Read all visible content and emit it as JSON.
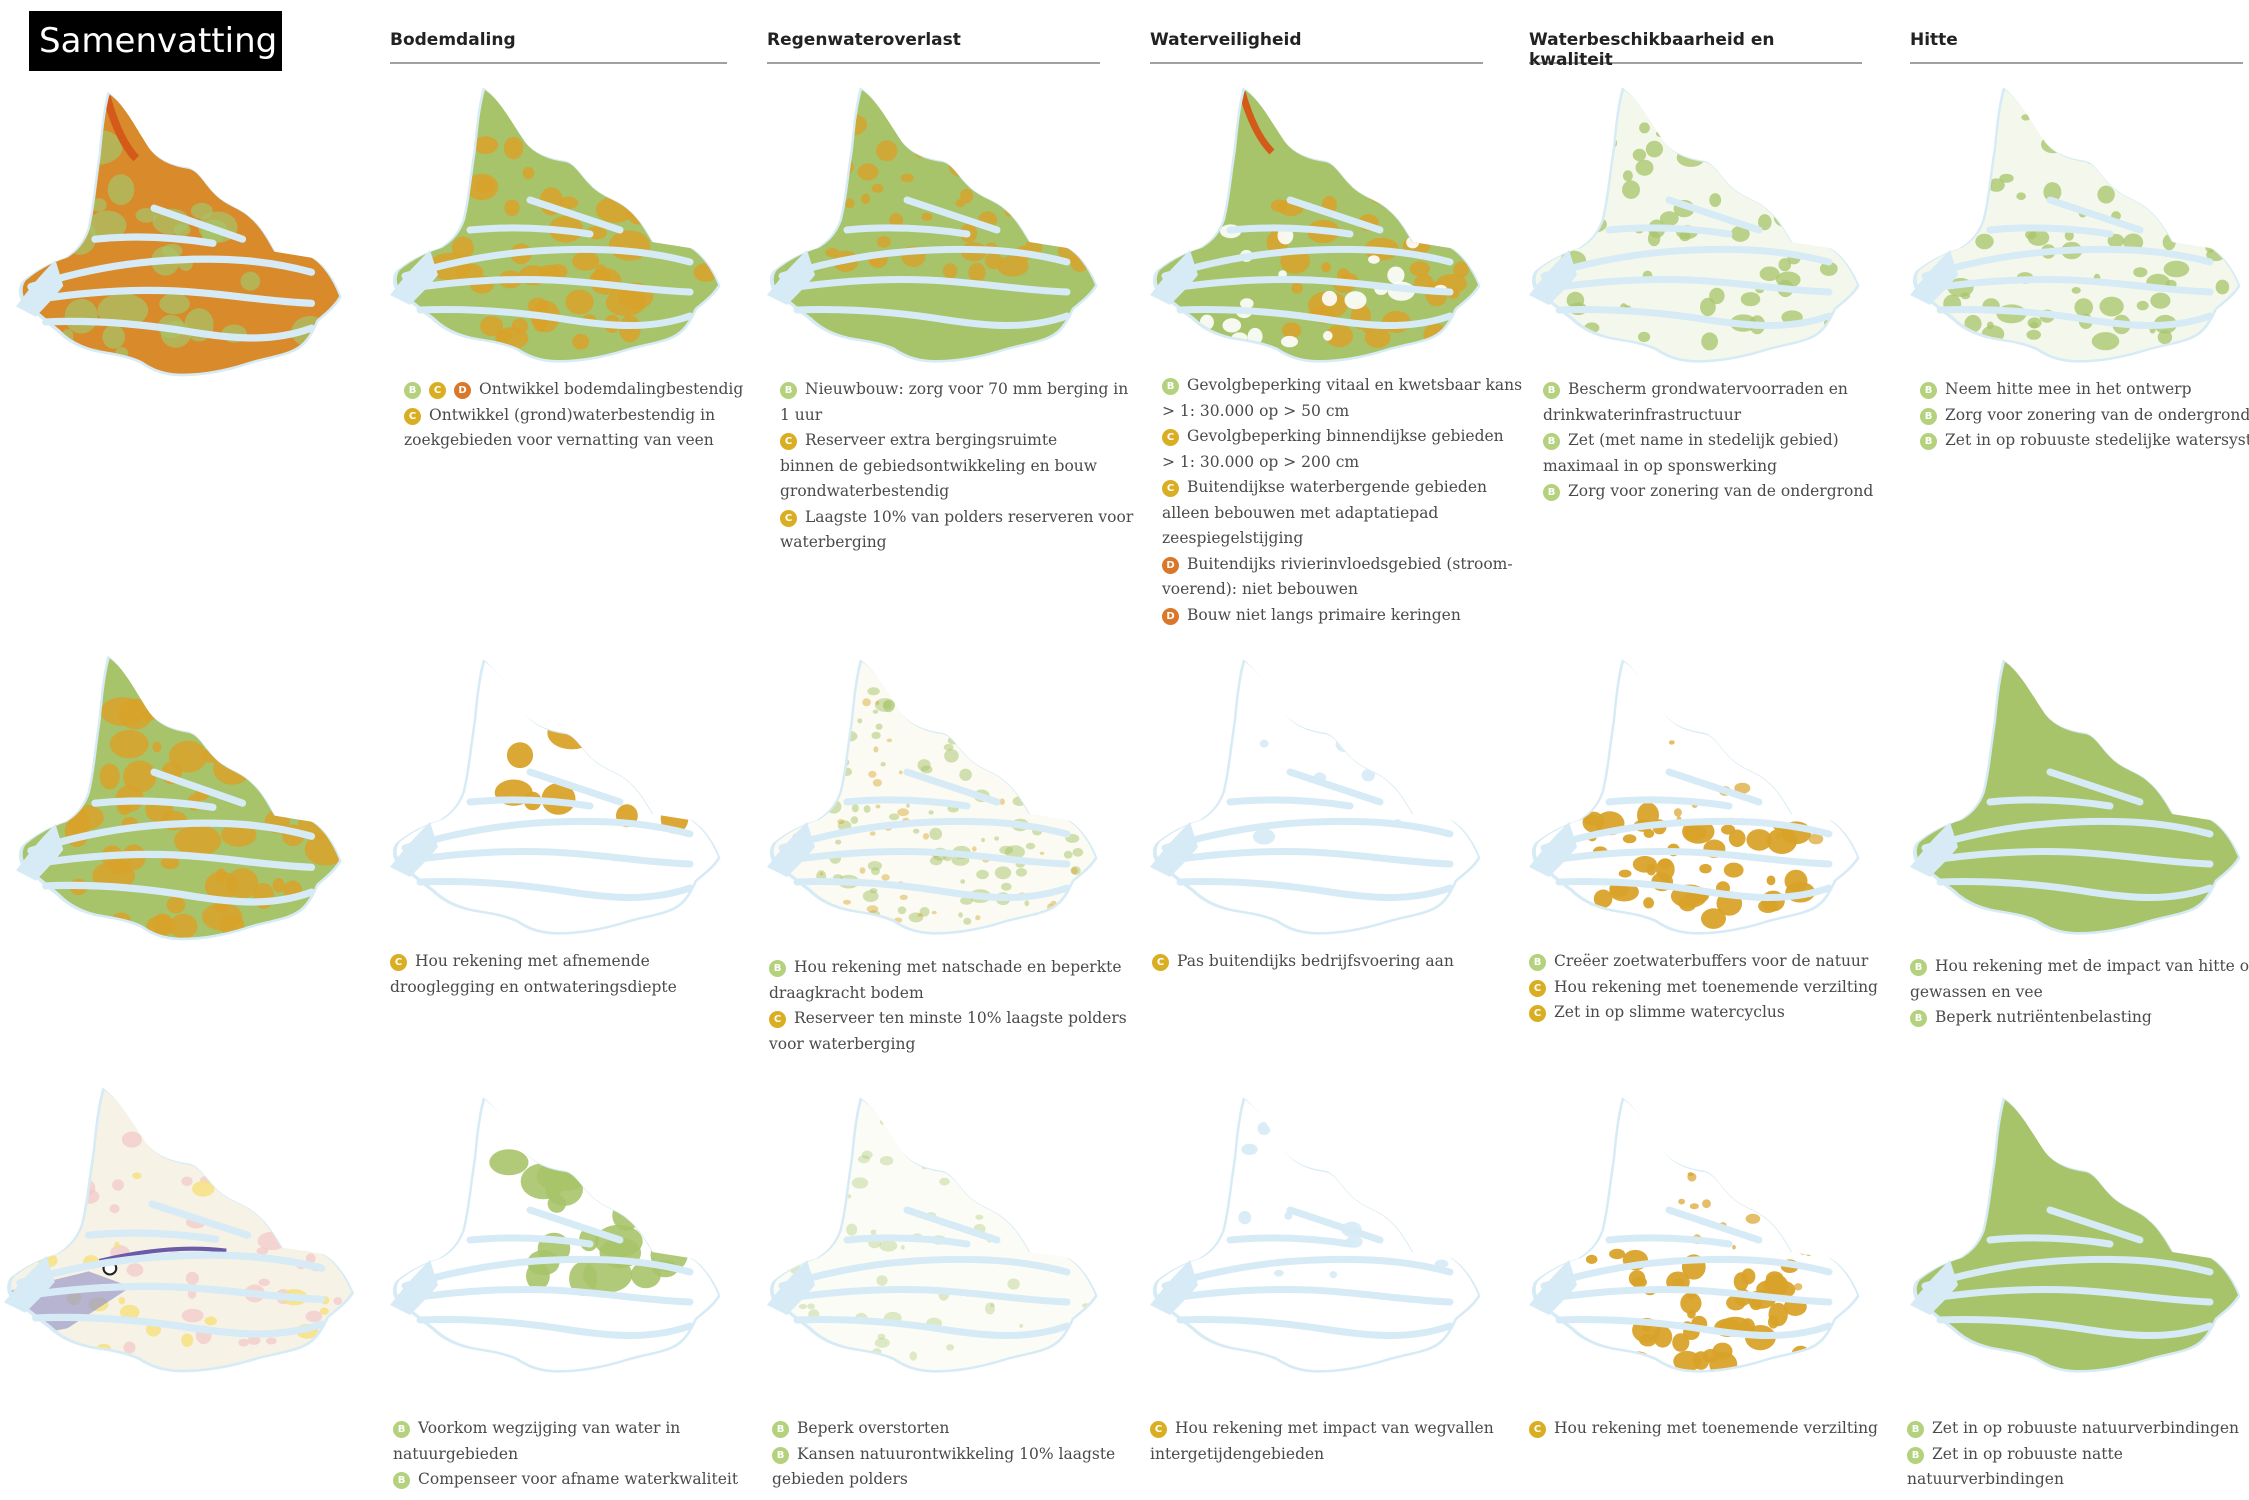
{
  "title": "Samenvatting",
  "columns": [
    "Bodemdaling",
    "Regenwateroverlast",
    "Waterveiligheid",
    "Waterbeschikbaarheid en kwaliteit",
    "Hitte"
  ],
  "colors": {
    "B": "#b4d17e",
    "C": "#d9ae22",
    "D": "#d9782a",
    "water": "#d6ebf5",
    "land_green": "#a7c46a",
    "land_orange": "#d9a22a"
  },
  "legends": {
    "r1c1": [
      {
        "badges": [
          "B",
          "C",
          "D"
        ],
        "text": "Ontwikkel bodemdalingbestendig"
      },
      {
        "badges": [
          "C"
        ],
        "text": "Ontwikkel (grond)waterbestendig in"
      },
      {
        "badges": [],
        "text": "zoekgebieden voor vernatting van veen"
      }
    ],
    "r1c2": [
      {
        "badges": [
          "B"
        ],
        "text": "Nieuwbouw: zorg voor 70 mm berging in"
      },
      {
        "badges": [],
        "text": "1 uur"
      },
      {
        "badges": [
          "C"
        ],
        "text": "Reserveer extra bergingsruimte"
      },
      {
        "badges": [],
        "text": "binnen de gebiedsontwikkeling en bouw"
      },
      {
        "badges": [],
        "text": "grondwaterbestendig"
      },
      {
        "badges": [
          "C"
        ],
        "text": "Laagste 10% van polders reserveren voor"
      },
      {
        "badges": [],
        "text": "waterberging"
      }
    ],
    "r1c3": [
      {
        "badges": [
          "B"
        ],
        "text": "Gevolgbeperking vitaal en kwetsbaar kans"
      },
      {
        "badges": [],
        "text": "> 1: 30.000 op > 50 cm"
      },
      {
        "badges": [
          "C"
        ],
        "text": "Gevolgbeperking binnendijkse gebieden"
      },
      {
        "badges": [],
        "text": "> 1: 30.000 op > 200 cm"
      },
      {
        "badges": [
          "C"
        ],
        "text": "Buitendijkse waterbergende gebieden"
      },
      {
        "badges": [],
        "text": "alleen bebouwen met adaptatiepad"
      },
      {
        "badges": [],
        "text": "zeespiegelstijging"
      },
      {
        "badges": [
          "D"
        ],
        "text": "Buitendijks rivierinvloedsgebied (stroom-"
      },
      {
        "badges": [],
        "text": "voerend): niet bebouwen"
      },
      {
        "badges": [
          "D"
        ],
        "text": "Bouw niet langs primaire keringen"
      }
    ],
    "r1c4": [
      {
        "badges": [
          "B"
        ],
        "text": "Bescherm grondwatervoorraden en"
      },
      {
        "badges": [],
        "text": "drinkwaterinfrastructuur"
      },
      {
        "badges": [
          "B"
        ],
        "text": "Zet (met name in stedelijk gebied)"
      },
      {
        "badges": [],
        "text": "maximaal in op sponswerking"
      },
      {
        "badges": [
          "B"
        ],
        "text": "Zorg voor zonering van de ondergrond"
      }
    ],
    "r1c5": [
      {
        "badges": [
          "B"
        ],
        "text": "Neem hitte mee in het ontwerp"
      },
      {
        "badges": [
          "B"
        ],
        "text": "Zorg voor zonering van de ondergrond"
      },
      {
        "badges": [
          "B"
        ],
        "text": "Zet in op robuuste stedelijke watersystemen"
      }
    ],
    "r2c1": [
      {
        "badges": [
          "C"
        ],
        "text": "Hou rekening met afnemende"
      },
      {
        "badges": [],
        "text": "drooglegging en ontwateringsdiepte"
      }
    ],
    "r2c2": [
      {
        "badges": [
          "B"
        ],
        "text": "Hou rekening met natschade en beperkte"
      },
      {
        "badges": [],
        "text": "draagkracht bodem"
      },
      {
        "badges": [
          "C"
        ],
        "text": "Reserveer ten minste 10% laagste polders"
      },
      {
        "badges": [],
        "text": "voor waterberging"
      }
    ],
    "r2c3": [
      {
        "badges": [
          "C"
        ],
        "text": "Pas buitendijks bedrijfsvoering aan"
      }
    ],
    "r2c4": [
      {
        "badges": [
          "B"
        ],
        "text": "Creëer zoetwaterbuffers voor de natuur"
      },
      {
        "badges": [
          "C"
        ],
        "text": "Hou rekening met toenemende verzilting"
      },
      {
        "badges": [
          "C"
        ],
        "text": "Zet in op slimme watercyclus"
      }
    ],
    "r2c5": [
      {
        "badges": [
          "B"
        ],
        "text": "Hou rekening met de impact van hitte op"
      },
      {
        "badges": [],
        "text": "gewassen en vee"
      },
      {
        "badges": [
          "B"
        ],
        "text": "Beperk nutriëntenbelasting"
      }
    ],
    "r3c1": [
      {
        "badges": [
          "B"
        ],
        "text": "Voorkom wegzijging van water in"
      },
      {
        "badges": [],
        "text": "natuurgebieden"
      },
      {
        "badges": [
          "B"
        ],
        "text": "Compenseer voor afname waterkwaliteit"
      }
    ],
    "r3c2": [
      {
        "badges": [
          "B"
        ],
        "text": "Beperk overstorten"
      },
      {
        "badges": [
          "B"
        ],
        "text": "Kansen natuurontwikkeling 10% laagste"
      },
      {
        "badges": [],
        "text": "gebieden polders"
      }
    ],
    "r3c3": [
      {
        "badges": [
          "C"
        ],
        "text": "Hou rekening met impact van wegvallen"
      },
      {
        "badges": [],
        "text": "intergetijdengebieden"
      }
    ],
    "r3c4": [
      {
        "badges": [
          "C"
        ],
        "text": "Hou rekening met toenemende verzilting"
      }
    ],
    "r3c5": [
      {
        "badges": [
          "B"
        ],
        "text": "Zet in op robuuste natuurverbindingen"
      },
      {
        "badges": [
          "B"
        ],
        "text": "Zet in op robuuste natte"
      },
      {
        "badges": [],
        "text": "natuurverbindingen"
      }
    ]
  }
}
